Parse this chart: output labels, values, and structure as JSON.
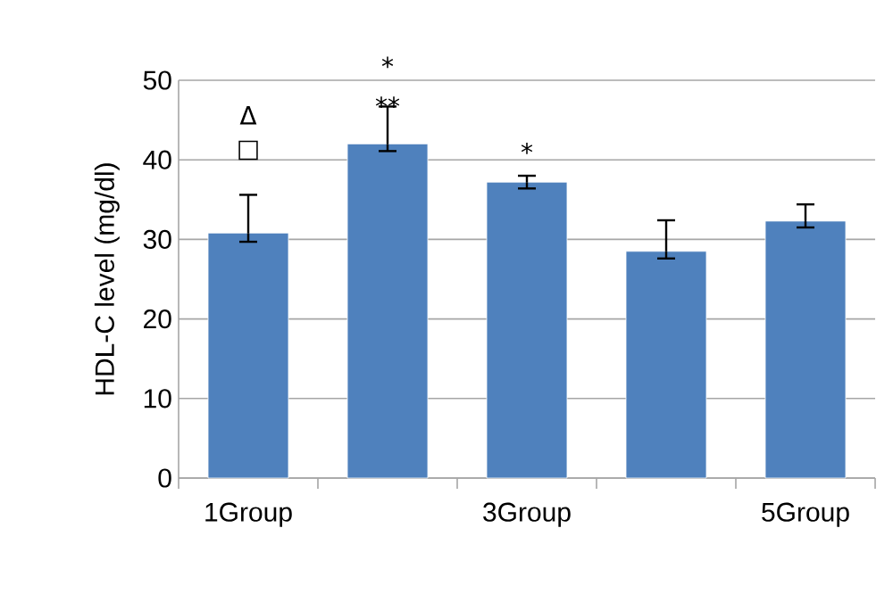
{
  "chart_data": {
    "type": "bar",
    "ylabel": "HDL-C level (mg/dl)",
    "categories": [
      "1Group",
      null,
      "3Group",
      null,
      "5Group"
    ],
    "values": [
      30.8,
      42,
      37.2,
      28.5,
      32.3
    ],
    "errors": [
      [
        29.7,
        35.6
      ],
      [
        41.1,
        46.7
      ],
      [
        36.4,
        38.0
      ],
      [
        27.6,
        32.4
      ],
      [
        31.5,
        34.4
      ]
    ],
    "color": "#4f81bd",
    "ylim": [
      0,
      50
    ],
    "yticks": [
      0,
      10,
      20,
      30,
      40,
      50
    ],
    "grid": "y",
    "annotations": [
      "Δ",
      "□",
      "*",
      "**",
      "*"
    ]
  }
}
